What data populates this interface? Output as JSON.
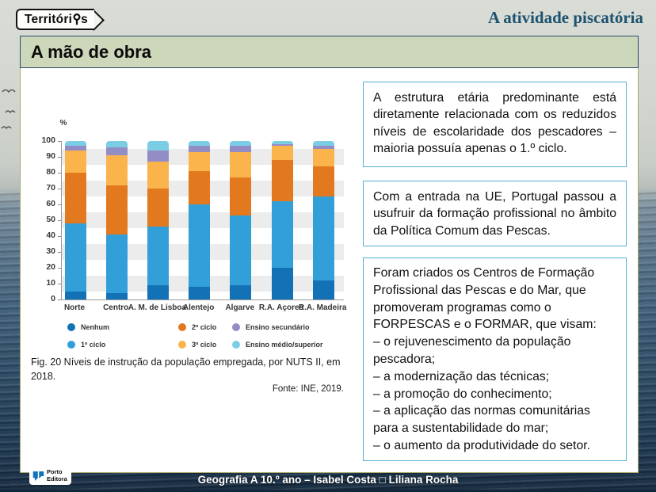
{
  "header": {
    "brand": {
      "prefix": "Territóri",
      "suffix": "s"
    },
    "topic": "A atividade piscatória"
  },
  "slide_title": "A mão de obra",
  "chart_data": {
    "type": "bar",
    "stacked": true,
    "ylabel": "%",
    "ylim": [
      0,
      100
    ],
    "yticks": [
      0,
      10,
      20,
      30,
      40,
      50,
      60,
      70,
      80,
      90,
      100
    ],
    "grid": "horizontal-bands",
    "legend_position": "bottom",
    "categories": [
      "Norte",
      "Centro",
      "A. M. de Lisboa",
      "Alentejo",
      "Algarve",
      "R.A. Açores",
      "R.A. Madeira"
    ],
    "series": [
      {
        "name": "Nenhum",
        "color": "#1371b5",
        "values": [
          5,
          4,
          9,
          8,
          9,
          20,
          12
        ]
      },
      {
        "name": "1º ciclo",
        "color": "#339fd9",
        "values": [
          43,
          37,
          37,
          52,
          44,
          42,
          53
        ]
      },
      {
        "name": "2º ciclo",
        "color": "#e2791f",
        "values": [
          32,
          31,
          24,
          21,
          24,
          26,
          19
        ]
      },
      {
        "name": "3º ciclo",
        "color": "#fbb34c",
        "values": [
          14,
          19,
          17,
          12,
          16,
          9,
          11
        ]
      },
      {
        "name": "Ensino secundário",
        "color": "#938dc6",
        "values": [
          3,
          5,
          7,
          4,
          4,
          1,
          2
        ]
      },
      {
        "name": "Ensino médio/superior",
        "color": "#7bcde4",
        "values": [
          3,
          4,
          6,
          3,
          3,
          2,
          3
        ]
      }
    ]
  },
  "figure": {
    "caption": "Fig. 20  Níveis de instrução da população empregada, por NUTS II, em 2018.",
    "source": "Fonte: INE, 2019."
  },
  "notes": [
    {
      "text": "A estrutura etária predominante está diretamente relacionada com os reduzidos níveis de escolaridade dos pescadores – maioria possuía apenas o 1.º ciclo."
    },
    {
      "text": "Com a entrada na UE, Portugal passou a usufruir da formação profissional no âmbito da Política Comum das Pescas."
    },
    {
      "text": "Foram criados os Centros de Formação Profissional das Pescas e do Mar, que promoveram programas como o FORPESCAS e o FORMAR, que visam:\n– o rejuvenescimento da população pescadora;\n– a modernização das técnicas;\n– a promoção do conhecimento;\n– a aplicação das normas comunitárias para a sustentabilidade do mar;\n– o aumento da produtividade do setor."
    }
  ],
  "footer": {
    "credit": "Geografia A 10.º ano – Isabel Costa □ Liliana Rocha",
    "publisher": {
      "line1": "Porto",
      "line2": "Editora"
    }
  },
  "colors": {
    "topic_text": "#1d5270",
    "title_bar_bg": "#cdd7ba",
    "title_bar_border": "#2c4a6b",
    "note_border": "#55b0d5",
    "panel_border": "#a8a869",
    "publisher_blue": "#1273b8"
  }
}
